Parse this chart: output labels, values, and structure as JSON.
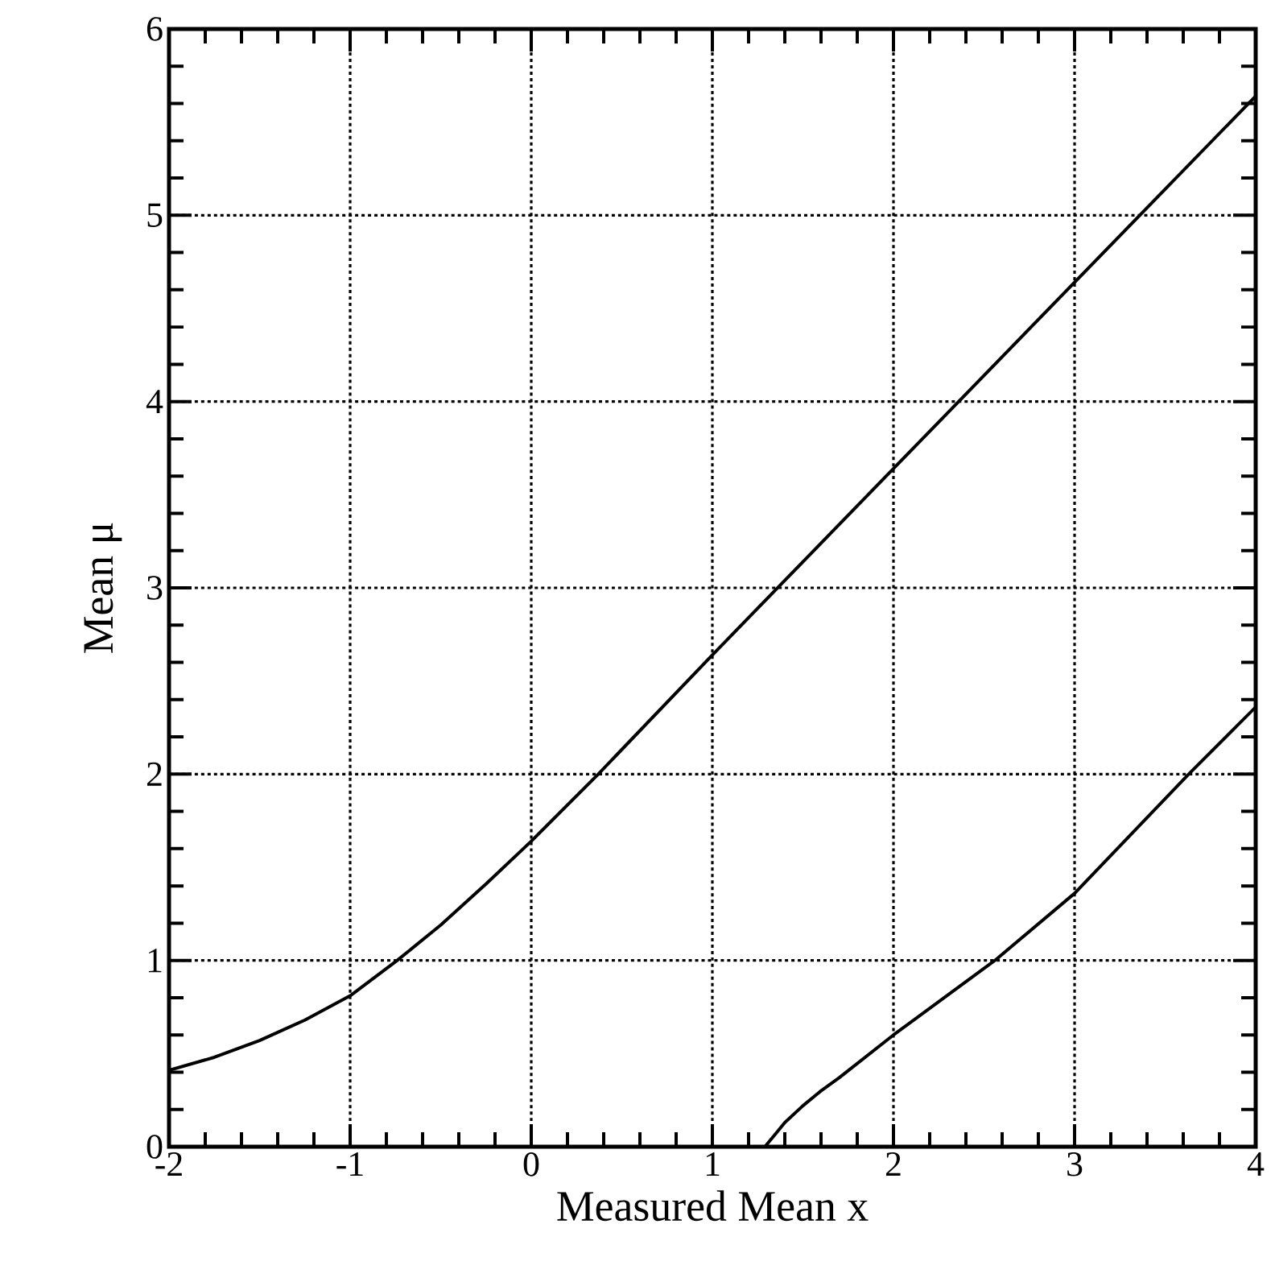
{
  "chart_data": {
    "type": "line",
    "xlabel": "Measured Mean x",
    "ylabel": "Mean μ",
    "xlim": [
      -2,
      4
    ],
    "ylim": [
      0,
      6
    ],
    "xticks": [
      -2,
      -1,
      0,
      1,
      2,
      3,
      4
    ],
    "yticks": [
      0,
      1,
      2,
      3,
      4,
      5,
      6
    ],
    "grid": true,
    "line_style": "solid",
    "marker": "none",
    "series": [
      {
        "color": "#000000",
        "x": [
          -2,
          -1.75,
          -1.5,
          -1.25,
          -1,
          -0.74,
          -0.5,
          -0.25,
          0,
          0.37,
          1,
          2,
          3,
          4
        ],
        "values": [
          0.41,
          0.48,
          0.57,
          0.68,
          0.81,
          1.0,
          1.19,
          1.41,
          1.64,
          2.0,
          2.64,
          3.64,
          4.64,
          5.64
        ]
      },
      {
        "color": "#000000",
        "x": [
          1.29,
          1.35,
          1.4,
          1.5,
          1.6,
          1.7,
          2,
          2.56,
          3,
          3.63,
          4
        ],
        "values": [
          0,
          0.07,
          0.13,
          0.22,
          0.3,
          0.37,
          0.6,
          1.0,
          1.36,
          2.0,
          2.36
        ]
      }
    ]
  }
}
